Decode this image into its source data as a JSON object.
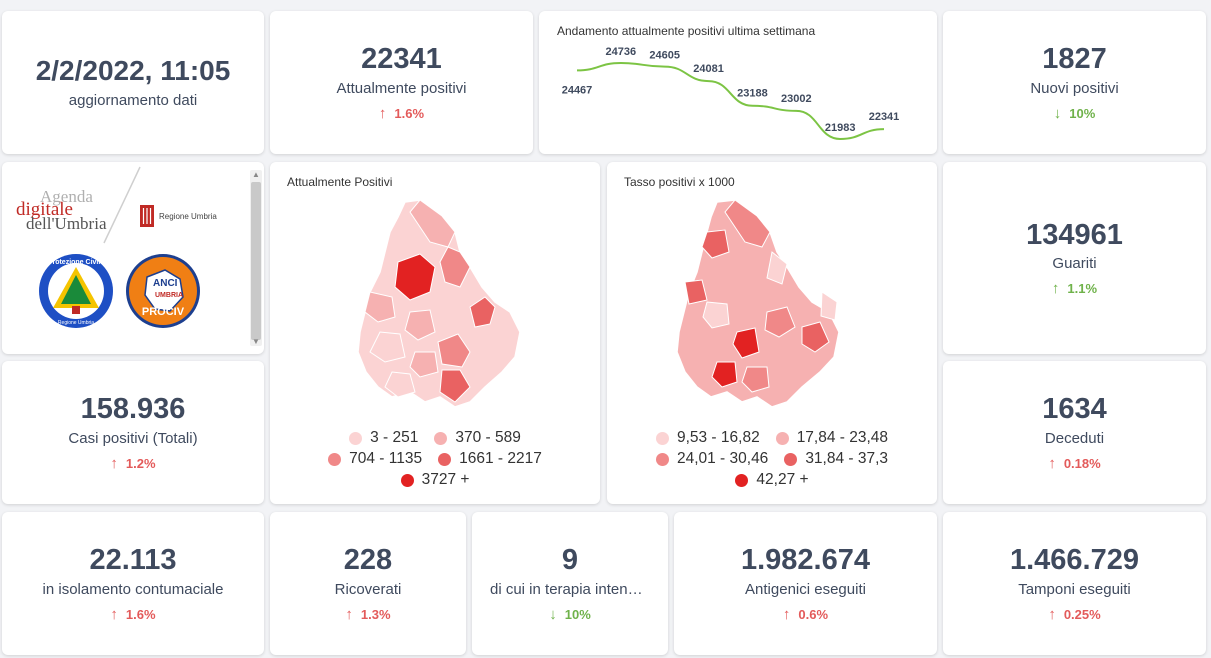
{
  "update": {
    "datetime": "2/2/2022, 11:05",
    "label": "aggiornamento dati"
  },
  "attualmente_positivi": {
    "value": "22341",
    "label": "Attualmente positivi",
    "trend": "1.6%",
    "direction": "up"
  },
  "trend_chart": {
    "title": "Andamento attualmente positivi ultima settimana",
    "points": [
      "24467",
      "24736",
      "24605",
      "24081",
      "23188",
      "23002",
      "21983",
      "22341"
    ]
  },
  "chart_data": {
    "type": "line",
    "title": "Andamento attualmente positivi ultima settimana",
    "y": [
      24467,
      24736,
      24605,
      24081,
      23188,
      23002,
      21983,
      22341
    ],
    "color": "#7cc444"
  },
  "nuovi_positivi": {
    "value": "1827",
    "label": "Nuovi positivi",
    "trend": "10%",
    "direction": "down"
  },
  "logos": {
    "agenda_line1": "Agenda",
    "agenda_line2": "digitale",
    "agenda_line3": "dell'Umbria",
    "regione": "Regione Umbria",
    "protezione_top": "Protezione Civile",
    "protezione_bottom": "Regione Umbria",
    "anci_1": "ANCI",
    "anci_2": "UMBRIA",
    "anci_3": "PROCIV"
  },
  "map_positivi": {
    "title": "Attualmente Positivi",
    "legend": [
      {
        "label": "3 - 251",
        "color": "#fbd3d3"
      },
      {
        "label": "370 - 589",
        "color": "#f6b1b1"
      },
      {
        "label": "704 - 1135",
        "color": "#f08888"
      },
      {
        "label": "1661 - 2217",
        "color": "#e96262"
      },
      {
        "label": "3727 +",
        "color": "#e22222"
      }
    ]
  },
  "map_tasso": {
    "title": "Tasso positivi x 1000",
    "legend": [
      {
        "label": "9,53 - 16,82",
        "color": "#fbd3d3"
      },
      {
        "label": "17,84 - 23,48",
        "color": "#f6b1b1"
      },
      {
        "label": "24,01 - 30,46",
        "color": "#f08888"
      },
      {
        "label": "31,84 - 37,3",
        "color": "#e96262"
      },
      {
        "label": "42,27 +",
        "color": "#e22222"
      }
    ]
  },
  "guariti": {
    "value": "134961",
    "label": "Guariti",
    "trend": "1.1%",
    "direction": "down"
  },
  "casi_totali": {
    "value": "158.936",
    "label": "Casi positivi (Totali)",
    "trend": "1.2%",
    "direction": "up"
  },
  "deceduti": {
    "value": "1634",
    "label": "Deceduti",
    "trend": "0.18%",
    "direction": "up"
  },
  "isolamento": {
    "value": "22.113",
    "label": "in isolamento contumaciale",
    "trend": "1.6%",
    "direction": "up"
  },
  "ricoverati": {
    "value": "228",
    "label": "Ricoverati",
    "trend": "1.3%",
    "direction": "up"
  },
  "terapia": {
    "value": "9",
    "label": "di cui in terapia intensiva",
    "trend": "10%",
    "direction": "down"
  },
  "antigenici": {
    "value": "1.982.674",
    "label": "Antigenici eseguiti",
    "trend": "0.6%",
    "direction": "up"
  },
  "tamponi": {
    "value": "1.466.729",
    "label": "Tamponi eseguiti",
    "trend": "0.25%",
    "direction": "up"
  },
  "icons": {
    "up": "arrow-up-icon",
    "down": "arrow-down-icon"
  },
  "arrows": {
    "up": "↑",
    "down": "↓"
  }
}
